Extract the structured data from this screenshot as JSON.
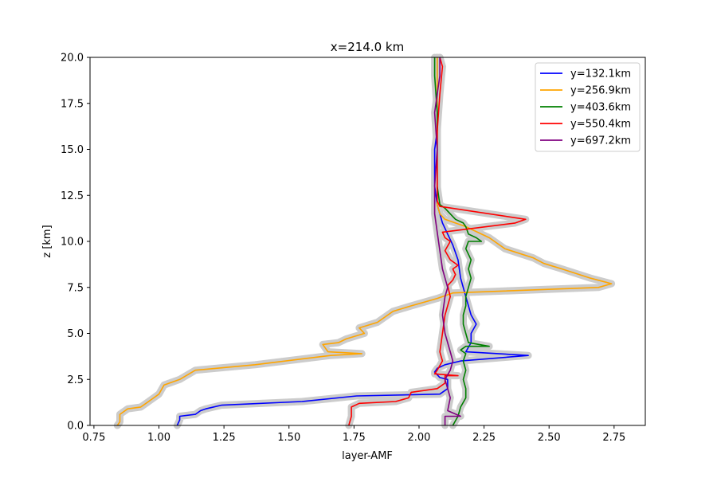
{
  "chart_data": {
    "type": "line",
    "title": "x=214.0 km",
    "xlabel": "layer-AMF",
    "ylabel": "z [km]",
    "xlim": [
      0.735,
      2.87
    ],
    "ylim": [
      0,
      20
    ],
    "xticks": [
      "0.75",
      "1.00",
      "1.25",
      "1.50",
      "1.75",
      "2.00",
      "2.25",
      "2.50",
      "2.75"
    ],
    "yticks": [
      "0.0",
      "2.5",
      "5.0",
      "7.5",
      "10.0",
      "12.5",
      "15.0",
      "17.5",
      "20.0"
    ],
    "grid": false,
    "legend_position": "top-right",
    "uncertainty_band_color": "#cccccc",
    "series": [
      {
        "name": "y=132.1km",
        "color": "#0000ff",
        "x": [
          1.07,
          1.08,
          1.08,
          1.14,
          1.16,
          1.18,
          1.24,
          1.55,
          1.76,
          2.08,
          2.11,
          2.11,
          2.08,
          2.06,
          2.07,
          2.1,
          2.16,
          2.42,
          2.18,
          2.2,
          2.2,
          2.22,
          2.2,
          2.18,
          2.16,
          2.15,
          2.13,
          2.11,
          2.09,
          2.08,
          2.07,
          2.06,
          2.06,
          2.06,
          2.07,
          2.07,
          2.07
        ],
        "y": [
          0.0,
          0.3,
          0.5,
          0.6,
          0.8,
          0.9,
          1.1,
          1.3,
          1.6,
          1.7,
          2.0,
          2.5,
          2.6,
          2.9,
          3.1,
          3.3,
          3.5,
          3.8,
          4.0,
          4.5,
          5.0,
          5.5,
          6.0,
          7.0,
          8.0,
          9.0,
          9.8,
          10.4,
          11.0,
          11.5,
          12.0,
          13.0,
          14.0,
          15.0,
          16.0,
          18.0,
          20.0
        ]
      },
      {
        "name": "y=256.9km",
        "color": "#ffa500",
        "x": [
          0.84,
          0.85,
          0.85,
          0.88,
          0.93,
          0.96,
          1.0,
          1.02,
          1.08,
          1.14,
          1.37,
          1.66,
          1.78,
          1.65,
          1.63,
          1.69,
          1.72,
          1.79,
          1.77,
          1.84,
          1.9,
          1.97,
          2.07,
          2.13,
          2.69,
          2.74,
          2.66,
          2.55,
          2.48,
          2.44,
          2.33,
          2.27,
          2.18,
          2.1,
          2.08,
          2.07,
          2.07,
          2.07
        ],
        "y": [
          0.0,
          0.2,
          0.6,
          0.9,
          1.0,
          1.3,
          1.7,
          2.2,
          2.5,
          3.0,
          3.3,
          3.8,
          3.9,
          4.0,
          4.4,
          4.5,
          4.7,
          5.0,
          5.3,
          5.6,
          6.2,
          6.5,
          6.9,
          7.2,
          7.5,
          7.7,
          8.0,
          8.5,
          8.8,
          9.1,
          9.6,
          10.2,
          10.8,
          11.2,
          11.5,
          12.0,
          16.0,
          20.0
        ]
      },
      {
        "name": "y=403.6km",
        "color": "#008000",
        "x": [
          2.13,
          2.15,
          2.16,
          2.18,
          2.18,
          2.17,
          2.18,
          2.17,
          2.18,
          2.16,
          2.18,
          2.27,
          2.19,
          2.18,
          2.17,
          2.17,
          2.18,
          2.18,
          2.19,
          2.2,
          2.19,
          2.2,
          2.19,
          2.18,
          2.19,
          2.24,
          2.22,
          2.19,
          2.18,
          2.17,
          2.14,
          2.12,
          2.1,
          2.08,
          2.07,
          2.07,
          2.07,
          2.06,
          2.06
        ],
        "y": [
          0.0,
          0.5,
          1.0,
          1.5,
          2.0,
          2.5,
          3.0,
          3.5,
          3.9,
          4.1,
          4.3,
          4.3,
          4.5,
          5.0,
          5.5,
          6.0,
          6.5,
          7.0,
          7.5,
          8.0,
          8.5,
          9.0,
          9.3,
          9.6,
          10.0,
          10.0,
          10.2,
          10.4,
          10.8,
          11.0,
          11.2,
          11.5,
          11.8,
          12.0,
          13.0,
          15.0,
          17.0,
          19.0,
          20.0
        ]
      },
      {
        "name": "y=550.4km",
        "color": "#ff0000",
        "x": [
          1.73,
          1.74,
          1.74,
          1.77,
          1.91,
          1.96,
          1.97,
          2.07,
          2.1,
          2.1,
          2.15,
          2.06,
          2.07,
          2.09,
          2.08,
          2.09,
          2.1,
          2.12,
          2.11,
          2.13,
          2.14,
          2.13,
          2.15,
          2.12,
          2.1,
          2.12,
          2.1,
          2.09,
          2.37,
          2.41,
          2.08,
          2.07,
          2.07,
          2.07,
          2.08,
          2.09,
          2.08
        ],
        "y": [
          0.0,
          0.5,
          1.0,
          1.2,
          1.3,
          1.5,
          1.8,
          2.0,
          2.3,
          2.7,
          2.7,
          2.8,
          3.0,
          3.5,
          4.0,
          5.0,
          6.0,
          7.0,
          7.6,
          7.9,
          8.2,
          8.5,
          8.7,
          9.0,
          9.5,
          10.0,
          10.2,
          10.5,
          11.0,
          11.2,
          11.9,
          12.2,
          14.0,
          16.0,
          18.0,
          19.5,
          20.0
        ]
      },
      {
        "name": "y=697.2km",
        "color": "#800080",
        "x": [
          2.1,
          2.1,
          2.16,
          2.11,
          2.12,
          2.11,
          2.1,
          2.12,
          2.13,
          2.12,
          2.11,
          2.1,
          2.09,
          2.1,
          2.11,
          2.09,
          2.08,
          2.07,
          2.06,
          2.06,
          2.07,
          2.06,
          2.07,
          2.08,
          2.08
        ],
        "y": [
          0.0,
          0.5,
          0.5,
          0.8,
          1.5,
          2.0,
          2.5,
          3.0,
          3.5,
          4.0,
          4.5,
          5.0,
          6.0,
          7.0,
          7.5,
          8.5,
          9.5,
          10.5,
          11.5,
          13.0,
          15.0,
          17.0,
          18.0,
          19.0,
          20.0
        ]
      }
    ]
  }
}
